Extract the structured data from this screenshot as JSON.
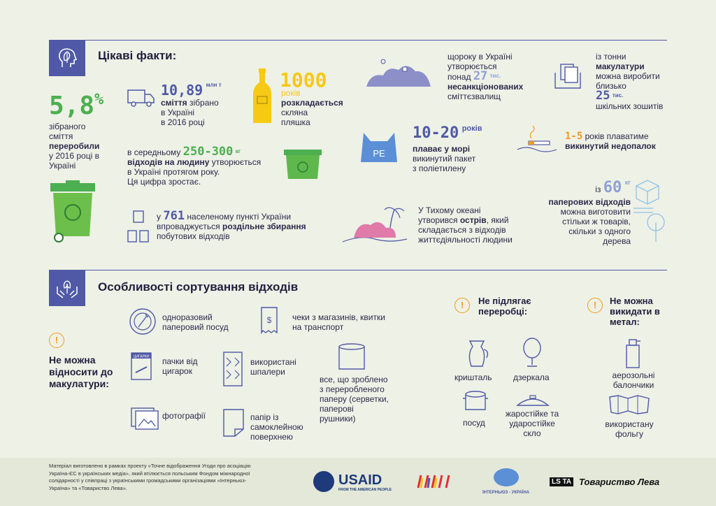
{
  "facts": {
    "title": "Цікаві факти:",
    "recycled": {
      "value": "5,8",
      "unit": "%",
      "pre": "зібраного сміття",
      "bold": "переробили",
      "post": "у 2016 році в Україні"
    },
    "trash": {
      "value": "10,89",
      "unit": "млн т",
      "bold": "сміття",
      "text1": " зібрано",
      "text2": "в Україні",
      "text3": "в 2016 році"
    },
    "bottle": {
      "value": "1000",
      "unit": "років",
      "bold": "розкладається",
      "text1": "скляна",
      "text2": "пляшка"
    },
    "per_person": {
      "pre": "в середньому ",
      "value": "250-300",
      "unit": "кг",
      "bold": "відходів на людину",
      "text1": " утворюється",
      "text2": "в Україні протягом року.",
      "text3": "Ця цифра зростає."
    },
    "settlements": {
      "pre": "у ",
      "value": "761",
      "mid": " населеному пункті України",
      "text1": "впроваджується ",
      "bold": "роздільне збирання",
      "text2": "побутових відходів"
    },
    "dumps": {
      "text1": "щороку в Україні",
      "text2": "утворюється",
      "pre": "понад ",
      "value": "27",
      "unit": "тис.",
      "bold": "несанкціонованих",
      "text3": "сміттєзвалищ"
    },
    "bag": {
      "value": "10-20",
      "unit": "років",
      "bold": "плаває у морі",
      "text1": "викинутий пакет",
      "text2": "з поліетилену",
      "label": "PE"
    },
    "island": {
      "text1": "У Тихому океані",
      "pre": "утворився ",
      "bold": "острів",
      "text2": ", який",
      "text3": "складається з відходів",
      "text4": "життєдіяльності людини"
    },
    "notebooks": {
      "text1": "із тонни",
      "bold": "макулатури",
      "text2": "можна виробити",
      "text3": "близько",
      "value": "25",
      "unit": "тис.",
      "text4": "шкільних зошитів"
    },
    "cigarette": {
      "value": "1-5",
      "text1": " років плаватиме",
      "bold": "викинутий недопалок"
    },
    "paper": {
      "pre": "із ",
      "value": "60",
      "unit": "кг",
      "bold": "паперових відходів",
      "text1": "можна виготовити",
      "text2": "стільки ж товарів,",
      "text3": "скільки з одного",
      "text4": "дерева"
    }
  },
  "sorting": {
    "title": "Особливості сортування відходів",
    "not_paper_head": "Не можна відносити до макулатури:",
    "items": {
      "dishes": "одноразовий паперовий посуд",
      "receipts": "чеки з магазинів, квитки на транспорт",
      "cig_packs": "пачки від цигарок",
      "wallpaper": "використані шпалери",
      "recycled": "все, що зроблено з переробленого паперу (серветки, паперові рушники)",
      "photos": "фотографії",
      "selfadhesive": "папір із самоклейною поверхнею",
      "pack_label": "ЦИГАРКИ"
    },
    "not_recycled_head": "Не підлягає переробці:",
    "not_recycled": {
      "crystal": "кришталь",
      "mirrors": "дзеркала",
      "dishes": "посуд",
      "glass": "жаростійке та ударостійке скло"
    },
    "not_metal_head": "Не можна викидати в метал:",
    "not_metal": {
      "aerosol": "аерозольні балончики",
      "foil": "використану фольгу"
    }
  },
  "footer": {
    "text": "Матеріал виготовлено в рамках проекту «Точне відображення Угоди про асоціацію Україна-ЄС в українських медіа», який втілюється польським Фондом міжнародної солідарності у співпраці з українськими громадськими організаціями «Інтерньюз-Україна» та «Товариство Лева».",
    "usaid": "USAID",
    "usaid_sub": "FROM THE AMERICAN PEOPLE",
    "internews": "ІНТЕРНЬЮЗ - УКРАЇНА",
    "lev_mark": "LS TA",
    "lev": "Товариство Лева"
  },
  "colors": {
    "accent": "#4f59a6",
    "green": "#4caf50",
    "yellow": "#f6c915",
    "orange": "#f39a1e"
  }
}
